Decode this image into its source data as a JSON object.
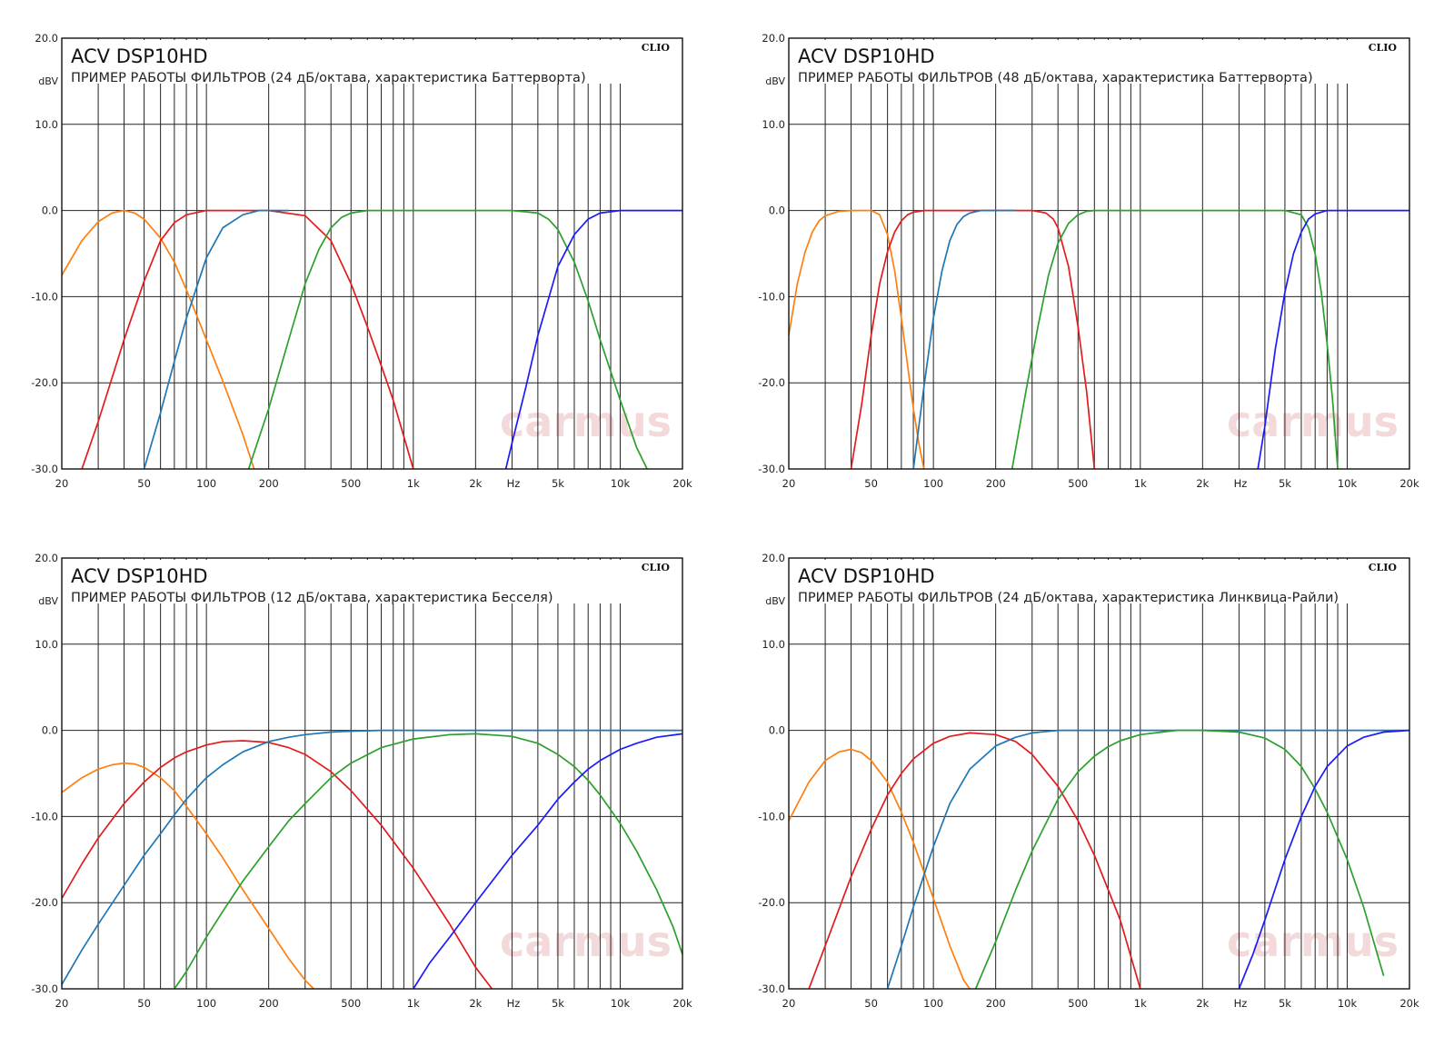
{
  "chart_data": [
    {
      "type": "line",
      "title": "ACV DSP10HD",
      "subtitle": "ПРИМЕР РАБОТЫ ФИЛЬТРОВ (24 дБ/октава, характеристика Баттерворта)",
      "brand": "CLIO",
      "watermark": "carmus",
      "ylabel": "dBV",
      "xunit_label": "Hz",
      "x_scale": "log",
      "xlim": [
        20,
        20000
      ],
      "ylim": [
        -30,
        20
      ],
      "x_ticks": [
        {
          "v": 20,
          "label": "20"
        },
        {
          "v": 50,
          "label": "50"
        },
        {
          "v": 100,
          "label": "100"
        },
        {
          "v": 200,
          "label": "200"
        },
        {
          "v": 500,
          "label": "500"
        },
        {
          "v": 1000,
          "label": "1k"
        },
        {
          "v": 2000,
          "label": "2k"
        },
        {
          "v": 5000,
          "label": "5k"
        },
        {
          "v": 10000,
          "label": "10k"
        },
        {
          "v": 20000,
          "label": "20k"
        }
      ],
      "y_ticks": [
        {
          "v": 20,
          "label": "20.0"
        },
        {
          "v": 10,
          "label": "10.0"
        },
        {
          "v": 0,
          "label": "0.0"
        },
        {
          "v": -10,
          "label": "-10.0"
        },
        {
          "v": -20,
          "label": "-20.0"
        },
        {
          "v": -30,
          "label": "-30.0"
        }
      ],
      "grid": true,
      "series": [
        {
          "color": "#ff7f0e",
          "x": [
            20,
            25,
            30,
            35,
            40,
            45,
            50,
            60,
            70,
            80,
            100,
            120,
            150,
            170
          ],
          "y": [
            -7.5,
            -3.5,
            -1.3,
            -0.3,
            0,
            -0.3,
            -1.0,
            -3.2,
            -6.0,
            -9.2,
            -15.0,
            -19.8,
            -26.0,
            -30
          ]
        },
        {
          "color": "#e41a1c",
          "x": [
            25,
            30,
            40,
            50,
            60,
            70,
            80,
            100,
            120,
            150,
            200,
            300,
            400,
            500,
            600,
            700,
            800,
            1000
          ],
          "y": [
            -30,
            -24.5,
            -15.0,
            -8.2,
            -3.5,
            -1.4,
            -0.5,
            0,
            0,
            0,
            0,
            -0.6,
            -3.5,
            -8.5,
            -13.5,
            -18.0,
            -22.0,
            -30
          ]
        },
        {
          "color": "#1f77b4",
          "x": [
            50,
            60,
            70,
            80,
            100,
            120,
            150,
            180,
            200,
            250
          ],
          "y": [
            -30,
            -23.5,
            -17.5,
            -12.5,
            -5.5,
            -2.0,
            -0.5,
            0,
            0,
            0
          ]
        },
        {
          "color": "#2ca02c",
          "x": [
            160,
            200,
            250,
            300,
            350,
            400,
            450,
            500,
            600,
            700,
            1000,
            2000,
            3000,
            4000,
            4500,
            5000,
            6000,
            7000,
            8000,
            10000,
            12000,
            13500
          ],
          "y": [
            -30,
            -23.0,
            -15.0,
            -8.5,
            -4.5,
            -2.0,
            -0.8,
            -0.3,
            0,
            0,
            0,
            0,
            0,
            -0.3,
            -1.0,
            -2.2,
            -6.0,
            -10.5,
            -15.0,
            -22.0,
            -27.5,
            -30
          ]
        },
        {
          "color": "#1a1aff",
          "x": [
            2800,
            3000,
            3500,
            4000,
            5000,
            6000,
            7000,
            8000,
            10000,
            12000,
            20000
          ],
          "y": [
            -30,
            -27.0,
            -20.5,
            -14.5,
            -6.5,
            -2.8,
            -1.0,
            -0.3,
            0,
            0,
            0
          ]
        }
      ]
    },
    {
      "type": "line",
      "title": "ACV DSP10HD",
      "subtitle": "ПРИМЕР РАБОТЫ ФИЛЬТРОВ (48 дБ/октава, характеристика Баттерворта)",
      "brand": "CLIO",
      "watermark": "carmus",
      "ylabel": "dBV",
      "xunit_label": "Hz",
      "x_scale": "log",
      "xlim": [
        20,
        20000
      ],
      "ylim": [
        -30,
        20
      ],
      "x_ticks": [
        {
          "v": 20,
          "label": "20"
        },
        {
          "v": 50,
          "label": "50"
        },
        {
          "v": 100,
          "label": "100"
        },
        {
          "v": 200,
          "label": "200"
        },
        {
          "v": 500,
          "label": "500"
        },
        {
          "v": 1000,
          "label": "1k"
        },
        {
          "v": 2000,
          "label": "2k"
        },
        {
          "v": 5000,
          "label": "5k"
        },
        {
          "v": 10000,
          "label": "10k"
        },
        {
          "v": 20000,
          "label": "20k"
        }
      ],
      "y_ticks": [
        {
          "v": 20,
          "label": "20.0"
        },
        {
          "v": 10,
          "label": "10.0"
        },
        {
          "v": 0,
          "label": "0.0"
        },
        {
          "v": -10,
          "label": "-10.0"
        },
        {
          "v": -20,
          "label": "-20.0"
        },
        {
          "v": -30,
          "label": "-30.0"
        }
      ],
      "grid": true,
      "series": [
        {
          "color": "#ff7f0e",
          "x": [
            20,
            22,
            24,
            26,
            28,
            30,
            35,
            40,
            45,
            50,
            55,
            60,
            65,
            70,
            75,
            80,
            85,
            90
          ],
          "y": [
            -14.5,
            -8.5,
            -4.8,
            -2.5,
            -1.2,
            -0.6,
            -0.1,
            0,
            0,
            0,
            -0.5,
            -2.8,
            -7.0,
            -12.5,
            -18.0,
            -23.0,
            -27.0,
            -30
          ]
        },
        {
          "color": "#e41a1c",
          "x": [
            40,
            45,
            50,
            55,
            60,
            65,
            70,
            75,
            80,
            90,
            100,
            200,
            300,
            350,
            380,
            400,
            450,
            500,
            550,
            600
          ],
          "y": [
            -30,
            -22.5,
            -14.5,
            -8.5,
            -4.8,
            -2.5,
            -1.2,
            -0.5,
            -0.2,
            0,
            0,
            0,
            0,
            -0.3,
            -1.0,
            -2.0,
            -6.5,
            -13.5,
            -21.0,
            -30
          ]
        },
        {
          "color": "#1f77b4",
          "x": [
            80,
            90,
            100,
            110,
            120,
            130,
            140,
            150,
            170,
            200,
            250
          ],
          "y": [
            -30,
            -20.5,
            -12.5,
            -7.0,
            -3.5,
            -1.6,
            -0.7,
            -0.3,
            0,
            0,
            0
          ]
        },
        {
          "color": "#2ca02c",
          "x": [
            240,
            280,
            320,
            360,
            400,
            450,
            500,
            550,
            600,
            1000,
            3000,
            5000,
            6000,
            6500,
            7000,
            7500,
            8000,
            8500,
            9000
          ],
          "y": [
            -30,
            -21.0,
            -13.5,
            -7.5,
            -3.8,
            -1.5,
            -0.5,
            -0.1,
            0,
            0,
            0,
            0,
            -0.5,
            -2.0,
            -5.0,
            -9.5,
            -15.5,
            -22.0,
            -30
          ]
        },
        {
          "color": "#1a1aff",
          "x": [
            3700,
            4000,
            4500,
            5000,
            5500,
            6000,
            6500,
            7000,
            8000,
            10000,
            20000
          ],
          "y": [
            -30,
            -25.0,
            -16.0,
            -9.5,
            -5.0,
            -2.5,
            -1.0,
            -0.4,
            0,
            0,
            0
          ]
        }
      ]
    },
    {
      "type": "line",
      "title": "ACV DSP10HD",
      "subtitle": "ПРИМЕР РАБОТЫ ФИЛЬТРОВ (12 дБ/октава, характеристика Бесселя)",
      "brand": "CLIO",
      "watermark": "carmus",
      "ylabel": "dBV",
      "xunit_label": "Hz",
      "x_scale": "log",
      "xlim": [
        20,
        20000
      ],
      "ylim": [
        -30,
        20
      ],
      "x_ticks": [
        {
          "v": 20,
          "label": "20"
        },
        {
          "v": 50,
          "label": "50"
        },
        {
          "v": 100,
          "label": "100"
        },
        {
          "v": 200,
          "label": "200"
        },
        {
          "v": 500,
          "label": "500"
        },
        {
          "v": 1000,
          "label": "1k"
        },
        {
          "v": 2000,
          "label": "2k"
        },
        {
          "v": 5000,
          "label": "5k"
        },
        {
          "v": 10000,
          "label": "10k"
        },
        {
          "v": 20000,
          "label": "20k"
        }
      ],
      "y_ticks": [
        {
          "v": 20,
          "label": "20.0"
        },
        {
          "v": 10,
          "label": "10.0"
        },
        {
          "v": 0,
          "label": "0.0"
        },
        {
          "v": -10,
          "label": "-10.0"
        },
        {
          "v": -20,
          "label": "-20.0"
        },
        {
          "v": -30,
          "label": "-30.0"
        }
      ],
      "grid": true,
      "series": [
        {
          "color": "#ff7f0e",
          "x": [
            20,
            25,
            30,
            35,
            40,
            45,
            50,
            60,
            70,
            80,
            100,
            120,
            150,
            200,
            250,
            300,
            330
          ],
          "y": [
            -7.2,
            -5.5,
            -4.5,
            -4.0,
            -3.8,
            -3.9,
            -4.3,
            -5.5,
            -7.0,
            -8.8,
            -12.0,
            -14.8,
            -18.5,
            -23.0,
            -26.5,
            -29.0,
            -30
          ]
        },
        {
          "color": "#e41a1c",
          "x": [
            20,
            25,
            30,
            40,
            50,
            60,
            70,
            80,
            100,
            120,
            150,
            200,
            250,
            300,
            400,
            500,
            700,
            1000,
            1500,
            2000,
            2400
          ],
          "y": [
            -19.5,
            -15.5,
            -12.5,
            -8.5,
            -6.0,
            -4.3,
            -3.2,
            -2.5,
            -1.7,
            -1.3,
            -1.2,
            -1.4,
            -2.0,
            -2.8,
            -4.8,
            -7.0,
            -11.0,
            -16.0,
            -22.5,
            -27.5,
            -30
          ]
        },
        {
          "color": "#1f77b4",
          "x": [
            20,
            25,
            30,
            40,
            50,
            60,
            70,
            80,
            100,
            120,
            150,
            200,
            250,
            300,
            400,
            500,
            700,
            1000,
            2000,
            5000,
            20000
          ],
          "y": [
            -29.5,
            -25.5,
            -22.5,
            -18.0,
            -14.5,
            -12.0,
            -9.8,
            -8.0,
            -5.5,
            -4.0,
            -2.5,
            -1.3,
            -0.8,
            -0.5,
            -0.2,
            -0.1,
            0,
            0,
            0,
            0,
            0
          ]
        },
        {
          "color": "#2ca02c",
          "x": [
            70,
            80,
            100,
            120,
            150,
            200,
            250,
            300,
            400,
            500,
            700,
            1000,
            1500,
            2000,
            3000,
            4000,
            5000,
            6000,
            7000,
            8000,
            10000,
            12000,
            15000,
            18000,
            20000
          ],
          "y": [
            -30,
            -28.0,
            -24.0,
            -21.0,
            -17.5,
            -13.5,
            -10.5,
            -8.5,
            -5.5,
            -3.8,
            -2.0,
            -1.0,
            -0.5,
            -0.4,
            -0.7,
            -1.5,
            -2.8,
            -4.2,
            -5.8,
            -7.5,
            -10.8,
            -14.0,
            -18.5,
            -22.8,
            -26.0
          ]
        },
        {
          "color": "#1a1aff",
          "x": [
            1000,
            1200,
            1500,
            2000,
            3000,
            4000,
            5000,
            6000,
            7000,
            8000,
            10000,
            12000,
            15000,
            20000
          ],
          "y": [
            -30,
            -27.0,
            -24.0,
            -20.0,
            -14.5,
            -11.0,
            -8.0,
            -6.0,
            -4.5,
            -3.5,
            -2.2,
            -1.5,
            -0.8,
            -0.4
          ]
        }
      ]
    },
    {
      "type": "line",
      "title": "ACV DSP10HD",
      "subtitle": "ПРИМЕР РАБОТЫ ФИЛЬТРОВ (24 дБ/октава, характеристика Линквица-Райли)",
      "brand": "CLIO",
      "watermark": "carmus",
      "ylabel": "dBV",
      "xunit_label": "Hz",
      "x_scale": "log",
      "xlim": [
        20,
        20000
      ],
      "ylim": [
        -30,
        20
      ],
      "x_ticks": [
        {
          "v": 20,
          "label": "20"
        },
        {
          "v": 50,
          "label": "50"
        },
        {
          "v": 100,
          "label": "100"
        },
        {
          "v": 200,
          "label": "200"
        },
        {
          "v": 500,
          "label": "500"
        },
        {
          "v": 1000,
          "label": "1k"
        },
        {
          "v": 2000,
          "label": "2k"
        },
        {
          "v": 5000,
          "label": "5k"
        },
        {
          "v": 10000,
          "label": "10k"
        },
        {
          "v": 20000,
          "label": "20k"
        }
      ],
      "y_ticks": [
        {
          "v": 20,
          "label": "20.0"
        },
        {
          "v": 10,
          "label": "10.0"
        },
        {
          "v": 0,
          "label": "0.0"
        },
        {
          "v": -10,
          "label": "-10.0"
        },
        {
          "v": -20,
          "label": "-20.0"
        },
        {
          "v": -30,
          "label": "-30.0"
        }
      ],
      "grid": true,
      "series": [
        {
          "color": "#ff7f0e",
          "x": [
            20,
            25,
            30,
            35,
            40,
            45,
            50,
            60,
            70,
            80,
            100,
            120,
            140,
            150
          ],
          "y": [
            -10.5,
            -6.0,
            -3.5,
            -2.5,
            -2.2,
            -2.6,
            -3.5,
            -6.0,
            -9.5,
            -13.0,
            -19.5,
            -25.0,
            -29.0,
            -30
          ]
        },
        {
          "color": "#e41a1c",
          "x": [
            25,
            30,
            40,
            50,
            60,
            70,
            80,
            100,
            120,
            150,
            200,
            250,
            300,
            400,
            500,
            600,
            700,
            800,
            1000
          ],
          "y": [
            -30,
            -25.0,
            -17.0,
            -11.5,
            -7.5,
            -5.0,
            -3.3,
            -1.5,
            -0.7,
            -0.3,
            -0.5,
            -1.3,
            -2.8,
            -6.5,
            -10.5,
            -14.5,
            -18.5,
            -22.0,
            -30
          ]
        },
        {
          "color": "#1f77b4",
          "x": [
            60,
            70,
            80,
            100,
            120,
            150,
            200,
            250,
            300,
            400,
            1000,
            20000
          ],
          "y": [
            -30,
            -25.0,
            -20.5,
            -13.5,
            -8.5,
            -4.5,
            -1.8,
            -0.8,
            -0.3,
            0,
            0,
            0
          ]
        },
        {
          "color": "#2ca02c",
          "x": [
            160,
            200,
            250,
            300,
            400,
            500,
            600,
            700,
            800,
            1000,
            1500,
            2000,
            3000,
            4000,
            5000,
            6000,
            7000,
            8000,
            10000,
            12000,
            15000
          ],
          "y": [
            -30,
            -24.5,
            -18.5,
            -14.0,
            -8.0,
            -4.8,
            -3.0,
            -1.9,
            -1.2,
            -0.5,
            0,
            0,
            -0.2,
            -0.9,
            -2.2,
            -4.2,
            -6.8,
            -9.5,
            -15.0,
            -20.5,
            -28.5
          ]
        },
        {
          "color": "#1a1aff",
          "x": [
            3000,
            3500,
            4000,
            5000,
            6000,
            7000,
            8000,
            10000,
            12000,
            15000,
            20000
          ],
          "y": [
            -30,
            -26.0,
            -22.0,
            -15.0,
            -10.0,
            -6.5,
            -4.2,
            -1.8,
            -0.8,
            -0.2,
            0
          ]
        }
      ]
    }
  ]
}
